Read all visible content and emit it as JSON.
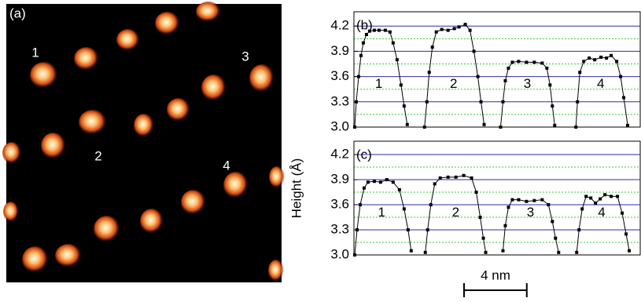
{
  "image_panel": {
    "label": "(a)",
    "markers": [
      "1",
      "2",
      "3",
      "4"
    ]
  },
  "y_axis_label": "Height (Å)",
  "scale_bar": {
    "label": "4 nm",
    "length": 4
  },
  "chart_data": [
    {
      "type": "line",
      "title": "(b)",
      "xlim": [
        0,
        18.25
      ],
      "ylim": [
        3.0,
        4.37
      ],
      "yticks": [
        {
          "value": 3.0,
          "label": "3.0"
        },
        3.3,
        3.6,
        3.9,
        4.2
      ],
      "minor_yticks": [
        3.15,
        3.45,
        3.75,
        4.05
      ],
      "grid": true,
      "grid_color": "#2b2bb0",
      "minor_grid_color": "#33cc33",
      "series": [
        {
          "name": "1",
          "color": "#000000",
          "x": [
            0.05,
            0.15,
            0.3,
            0.45,
            0.6,
            0.8,
            1.0,
            1.3,
            1.6,
            2.0,
            2.3,
            2.5,
            2.75,
            3.0,
            3.2,
            3.4
          ],
          "values": [
            3.0,
            3.3,
            3.6,
            3.85,
            4.0,
            4.1,
            4.14,
            4.15,
            4.15,
            4.15,
            4.13,
            4.0,
            3.8,
            3.5,
            3.25,
            3.03
          ]
        },
        {
          "name": "2",
          "color": "#000000",
          "x": [
            4.5,
            4.65,
            4.8,
            5.0,
            5.25,
            5.6,
            6.0,
            6.4,
            6.7,
            7.1,
            7.4,
            7.65,
            7.9,
            8.1,
            8.3
          ],
          "values": [
            3.0,
            3.3,
            3.65,
            3.95,
            4.13,
            4.16,
            4.15,
            4.17,
            4.19,
            4.22,
            4.15,
            3.9,
            3.6,
            3.3,
            3.03
          ]
        },
        {
          "name": "3",
          "color": "#000000",
          "x": [
            9.35,
            9.5,
            9.65,
            9.85,
            10.1,
            10.5,
            11.0,
            11.5,
            12.0,
            12.3,
            12.5,
            12.65,
            12.8
          ],
          "values": [
            3.0,
            3.3,
            3.55,
            3.7,
            3.77,
            3.78,
            3.77,
            3.77,
            3.76,
            3.7,
            3.5,
            3.25,
            3.02
          ]
        },
        {
          "name": "4",
          "color": "#000000",
          "x": [
            14.15,
            14.25,
            14.4,
            14.65,
            15.0,
            15.35,
            15.75,
            16.1,
            16.4,
            16.75,
            17.0,
            17.2,
            17.45
          ],
          "values": [
            3.0,
            3.3,
            3.65,
            3.78,
            3.82,
            3.8,
            3.83,
            3.82,
            3.85,
            3.78,
            3.6,
            3.35,
            3.02
          ]
        }
      ]
    },
    {
      "type": "line",
      "title": "(c)",
      "xlim": [
        0,
        18.25
      ],
      "ylim": [
        3.0,
        4.36
      ],
      "yticks": [
        {
          "value": 3.0,
          "label": "3.0"
        },
        3.3,
        3.6,
        3.9,
        4.2
      ],
      "minor_yticks": [
        3.15,
        3.45,
        3.75,
        4.05
      ],
      "grid": true,
      "grid_color": "#2b2bb0",
      "minor_grid_color": "#33cc33",
      "series": [
        {
          "name": "1",
          "color": "#000000",
          "x": [
            0.05,
            0.2,
            0.4,
            0.65,
            0.9,
            1.3,
            1.7,
            2.1,
            2.5,
            2.9,
            3.2,
            3.45,
            3.65
          ],
          "values": [
            3.0,
            3.3,
            3.6,
            3.8,
            3.87,
            3.88,
            3.87,
            3.9,
            3.87,
            3.78,
            3.55,
            3.3,
            3.05
          ]
        },
        {
          "name": "2",
          "color": "#000000",
          "x": [
            4.55,
            4.7,
            4.9,
            5.15,
            5.5,
            6.0,
            6.5,
            7.0,
            7.5,
            7.8,
            8.05,
            8.25,
            8.4
          ],
          "values": [
            3.03,
            3.3,
            3.6,
            3.85,
            3.92,
            3.93,
            3.93,
            3.95,
            3.92,
            3.75,
            3.45,
            3.2,
            3.03
          ]
        },
        {
          "name": "3",
          "color": "#000000",
          "x": [
            9.5,
            9.65,
            9.85,
            10.1,
            10.5,
            11.0,
            11.5,
            12.0,
            12.4,
            12.65,
            12.85,
            13.05
          ],
          "values": [
            3.05,
            3.35,
            3.57,
            3.66,
            3.66,
            3.64,
            3.65,
            3.66,
            3.6,
            3.4,
            3.2,
            3.03
          ]
        },
        {
          "name": "4",
          "color": "#000000",
          "x": [
            14.2,
            14.35,
            14.55,
            14.8,
            15.1,
            15.4,
            15.7,
            16.0,
            16.4,
            16.8,
            17.1,
            17.35,
            17.55
          ],
          "values": [
            3.03,
            3.3,
            3.55,
            3.7,
            3.68,
            3.62,
            3.67,
            3.72,
            3.7,
            3.7,
            3.5,
            3.25,
            3.05
          ]
        }
      ]
    }
  ]
}
